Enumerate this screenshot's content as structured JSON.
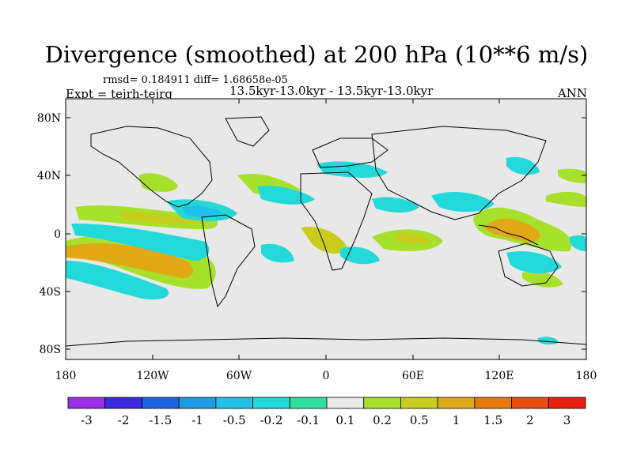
{
  "title": "Divergence (smoothed) at 200 hPa (10**6 m/s)",
  "stats": "rmsd= 0.184911 diff= 1.68658e-05",
  "expt": "Expt = tejrh-tejrg",
  "subtitle": "13.5kyr-13.0kyr - 13.5kyr-13.0kyr",
  "season": "ANN",
  "map": {
    "y_ticks": [
      "80N",
      "40N",
      "0",
      "40S",
      "80S"
    ],
    "x_ticks": [
      "180",
      "120W",
      "60W",
      "0",
      "60E",
      "120E",
      "180"
    ],
    "background_color": "#e8e8e8",
    "coast_color": "#000000"
  },
  "colorbar": {
    "labels": [
      "-3",
      "-2",
      "-1.5",
      "-1",
      "-0.5",
      "-0.2",
      "-0.1",
      "0.1",
      "0.2",
      "0.5",
      "1",
      "1.5",
      "2",
      "3"
    ],
    "colors": [
      "#9a2ee6",
      "#3b2ce0",
      "#1e64e6",
      "#1e9be6",
      "#20c0e8",
      "#22d8d8",
      "#2ee0a0",
      "#e8e8e8",
      "#a6e02a",
      "#c8cc1a",
      "#e0a814",
      "#e87a10",
      "#e84e10",
      "#e81e10"
    ]
  }
}
